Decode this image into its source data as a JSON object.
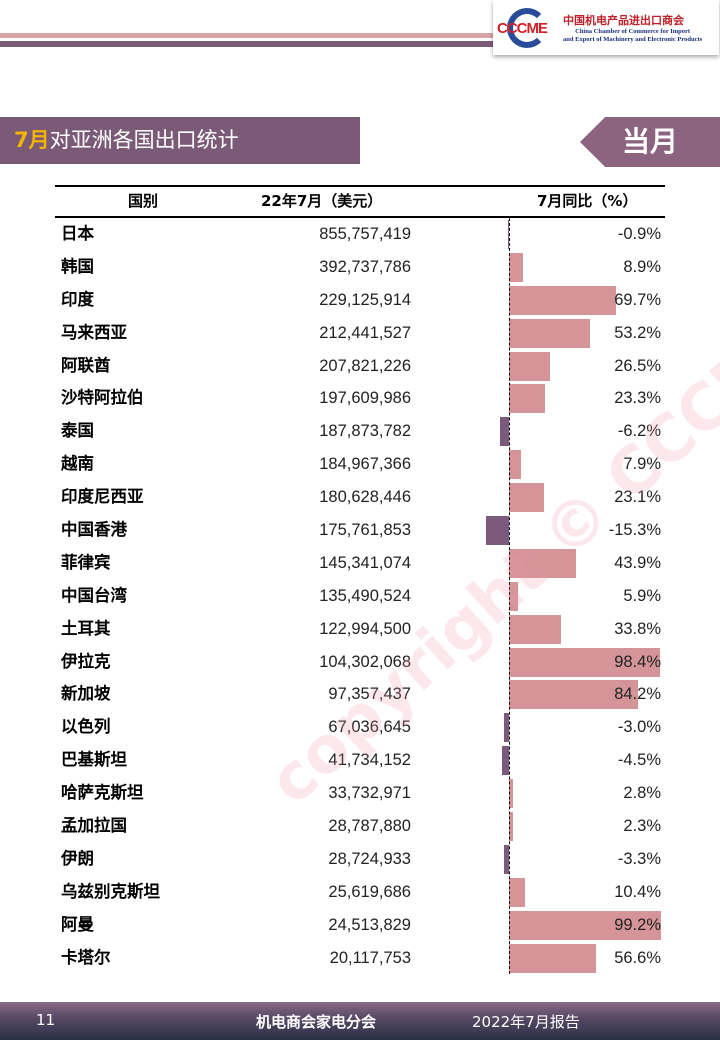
{
  "header": {
    "logo_abbr": "CCCME",
    "logo_cn": "中国机电产品进出口商会",
    "logo_en_1": "China Chamber of Commerce for Import",
    "logo_en_2": "and Export of Machinery and Electronic Products"
  },
  "title": {
    "highlight": "7月",
    "text": "对亚洲各国出口统计",
    "tag": "当月"
  },
  "table": {
    "headers": [
      "国别",
      "22年7月（美元）",
      "7月同比（%）"
    ],
    "rows": [
      {
        "country": "日本",
        "value": "855,757,419",
        "yoy": "-0.9%",
        "pct": -0.9
      },
      {
        "country": "韩国",
        "value": "392,737,786",
        "yoy": "8.9%",
        "pct": 8.9
      },
      {
        "country": "印度",
        "value": "229,125,914",
        "yoy": "69.7%",
        "pct": 69.7
      },
      {
        "country": "马来西亚",
        "value": "212,441,527",
        "yoy": "53.2%",
        "pct": 53.2
      },
      {
        "country": "阿联酋",
        "value": "207,821,226",
        "yoy": "26.5%",
        "pct": 26.5
      },
      {
        "country": "沙特阿拉伯",
        "value": "197,609,986",
        "yoy": "23.3%",
        "pct": 23.3
      },
      {
        "country": "泰国",
        "value": "187,873,782",
        "yoy": "-6.2%",
        "pct": -6.2
      },
      {
        "country": "越南",
        "value": "184,967,366",
        "yoy": "7.9%",
        "pct": 7.9
      },
      {
        "country": "印度尼西亚",
        "value": "180,628,446",
        "yoy": "23.1%",
        "pct": 23.1
      },
      {
        "country": "中国香港",
        "value": "175,761,853",
        "yoy": "-15.3%",
        "pct": -15.3
      },
      {
        "country": "菲律宾",
        "value": "145,341,074",
        "yoy": "43.9%",
        "pct": 43.9
      },
      {
        "country": "中国台湾",
        "value": "135,490,524",
        "yoy": "5.9%",
        "pct": 5.9
      },
      {
        "country": "土耳其",
        "value": "122,994,500",
        "yoy": "33.8%",
        "pct": 33.8
      },
      {
        "country": "伊拉克",
        "value": "104,302,068",
        "yoy": "98.4%",
        "pct": 98.4
      },
      {
        "country": "新加坡",
        "value": "97,357,437",
        "yoy": "84.2%",
        "pct": 84.2
      },
      {
        "country": "以色列",
        "value": "67,036,645",
        "yoy": "-3.0%",
        "pct": -3.0
      },
      {
        "country": "巴基斯坦",
        "value": "41,734,152",
        "yoy": "-4.5%",
        "pct": -4.5
      },
      {
        "country": "哈萨克斯坦",
        "value": "33,732,971",
        "yoy": "2.8%",
        "pct": 2.8
      },
      {
        "country": "孟加拉国",
        "value": "28,787,880",
        "yoy": "2.3%",
        "pct": 2.3
      },
      {
        "country": "伊朗",
        "value": "28,724,933",
        "yoy": "-3.3%",
        "pct": -3.3
      },
      {
        "country": "乌兹别克斯坦",
        "value": "25,619,686",
        "yoy": "10.4%",
        "pct": 10.4
      },
      {
        "country": "阿曼",
        "value": "24,513,829",
        "yoy": "99.2%",
        "pct": 99.2
      },
      {
        "country": "卡塔尔",
        "value": "20,117,753",
        "yoy": "56.6%",
        "pct": 56.6
      }
    ]
  },
  "colors": {
    "positive": "#d49498",
    "negative": "#7b5a7e"
  },
  "watermark": "copyright © CCCME",
  "footer": {
    "page": "11",
    "org": "机电商会家电分会",
    "report": "2022年7月报告"
  }
}
